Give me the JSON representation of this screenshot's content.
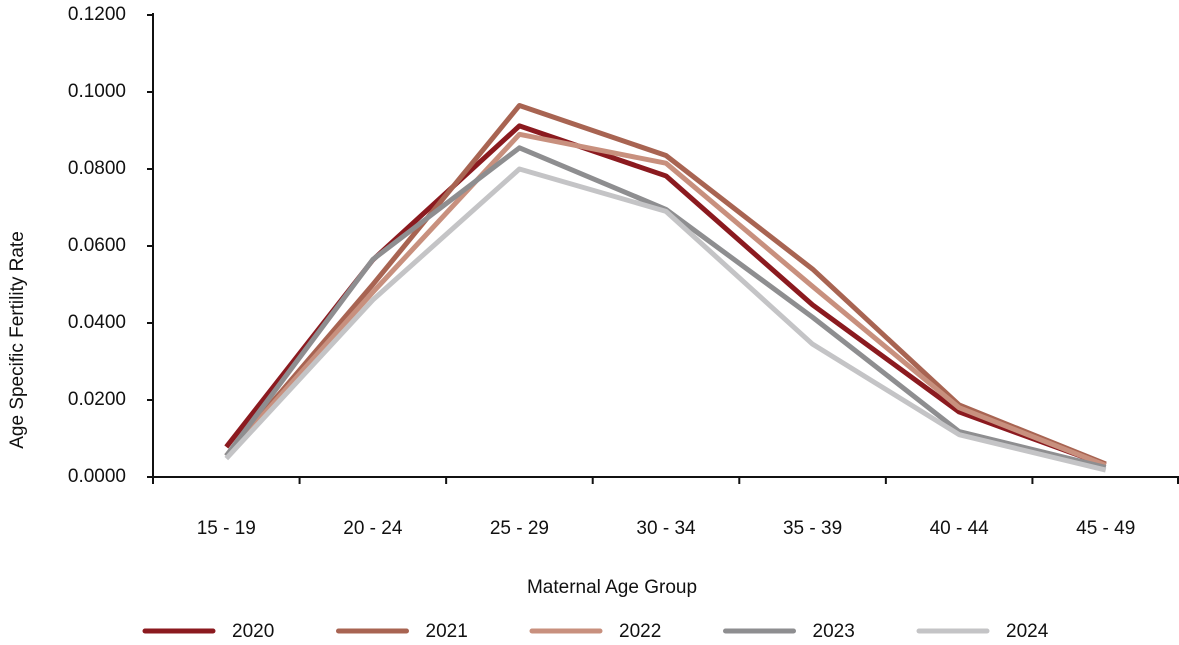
{
  "chart_data": {
    "type": "line",
    "x_label": "Maternal Age Group",
    "y_label": "Age Specific Fertility Rate",
    "categories": [
      "15 - 19",
      "20 - 24",
      "25 - 29",
      "30 - 34",
      "35 - 39",
      "40 - 44",
      "45 - 49"
    ],
    "series": [
      {
        "name": "2020",
        "color": "#8b1a1f",
        "values": [
          0.0078,
          0.0564,
          0.0912,
          0.0782,
          0.0447,
          0.0169,
          0.0031
        ]
      },
      {
        "name": "2021",
        "color": "#a86452",
        "values": [
          0.0055,
          0.05,
          0.0965,
          0.0835,
          0.054,
          0.0187,
          0.0034
        ]
      },
      {
        "name": "2022",
        "color": "#c8907e",
        "values": [
          0.0055,
          0.048,
          0.089,
          0.0815,
          0.0495,
          0.018,
          0.003
        ]
      },
      {
        "name": "2023",
        "color": "#8e8e90",
        "values": [
          0.0055,
          0.0565,
          0.0855,
          0.0695,
          0.0415,
          0.0118,
          0.0025
        ]
      },
      {
        "name": "2024",
        "color": "#c4c4c6",
        "values": [
          0.0048,
          0.046,
          0.08,
          0.069,
          0.0345,
          0.011,
          0.0018
        ]
      }
    ],
    "ylim": [
      0,
      0.12
    ],
    "yticks": [
      {
        "value": 0,
        "label": "0.0000"
      },
      {
        "value": 0.02,
        "label": "0.0200"
      },
      {
        "value": 0.04,
        "label": "0.0400"
      },
      {
        "value": 0.06,
        "label": "0.0600"
      },
      {
        "value": 0.08,
        "label": "0.0800"
      },
      {
        "value": 0.1,
        "label": "0.1000"
      },
      {
        "value": 0.12,
        "label": "0.1200"
      }
    ],
    "grid": false,
    "legend": "bottom"
  }
}
